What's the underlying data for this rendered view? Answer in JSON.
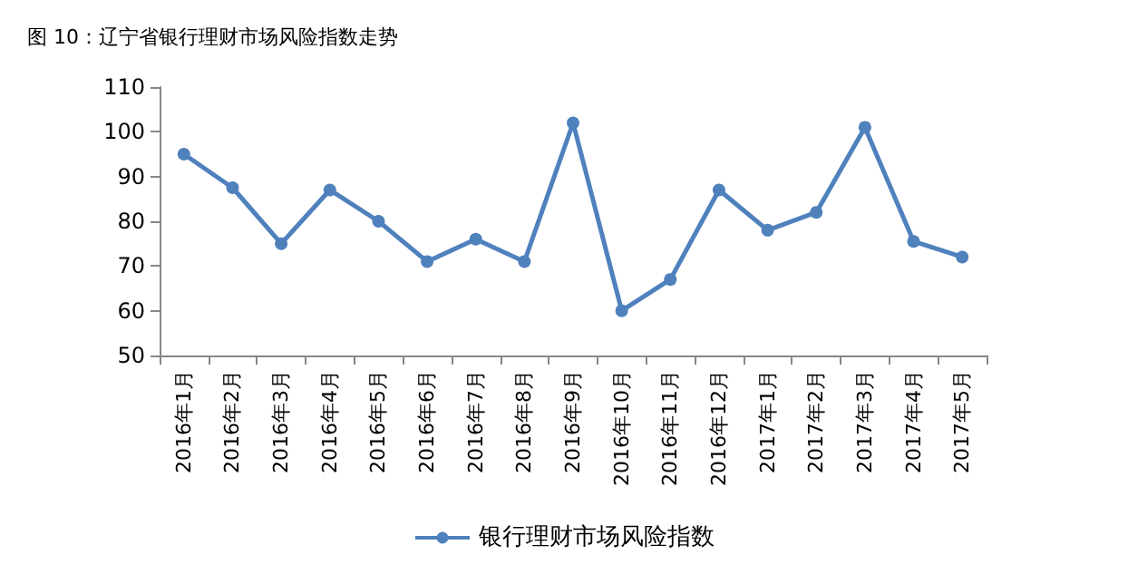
{
  "chart_data": {
    "type": "line",
    "title": "图 10：辽宁省银行理财市场风险指数走势",
    "categories": [
      "2016年1月",
      "2016年2月",
      "2016年3月",
      "2016年4月",
      "2016年5月",
      "2016年6月",
      "2016年7月",
      "2016年8月",
      "2016年9月",
      "2016年10月",
      "2016年11月",
      "2016年12月",
      "2017年1月",
      "2017年2月",
      "2017年3月",
      "2017年4月",
      "2017年5月"
    ],
    "series": [
      {
        "name": "银行理财市场风险指数",
        "color": "#4f81bd",
        "values": [
          95,
          87.5,
          75,
          87,
          80,
          71,
          76,
          71,
          102,
          60,
          67,
          87,
          78,
          82,
          101,
          75.5,
          72
        ]
      }
    ],
    "ylim": [
      50,
      110
    ],
    "yticks": [
      50,
      60,
      70,
      80,
      90,
      100,
      110
    ],
    "grid": false,
    "legend": "bottom",
    "marker": "circle",
    "line_style": "solid"
  }
}
